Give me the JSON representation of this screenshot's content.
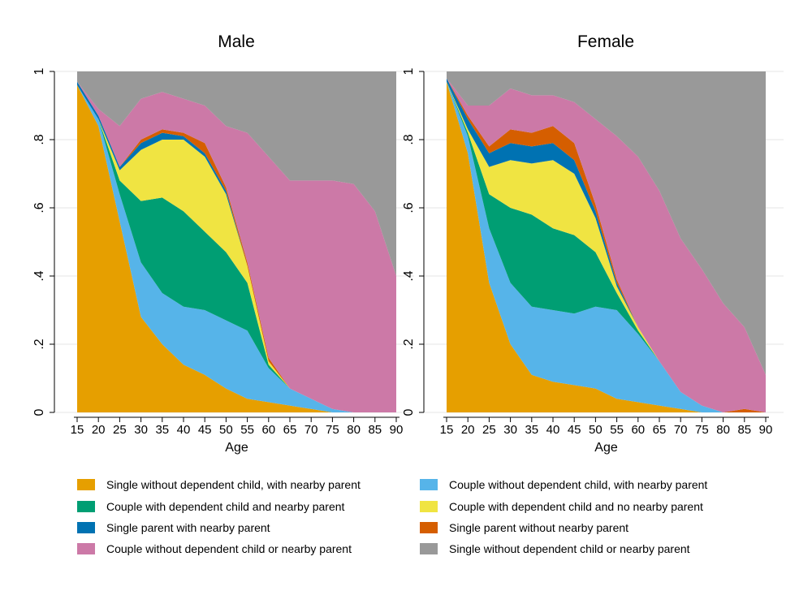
{
  "chart_data": {
    "type": "area",
    "subtype": "stacked-100-percent-histogram",
    "x_ticks": [
      15,
      20,
      25,
      30,
      35,
      40,
      45,
      50,
      55,
      60,
      65,
      70,
      75,
      80,
      85,
      90
    ],
    "y_ticks": [
      0,
      0.2,
      0.4,
      0.6,
      0.8,
      1
    ],
    "y_tick_labels": [
      "0",
      ".2",
      ".4",
      ".6",
      ".8",
      "1"
    ],
    "ylim": [
      0,
      1
    ],
    "xlim": [
      15,
      90
    ],
    "xlabel": "Age",
    "grid": "horizontal",
    "legend_position": "bottom",
    "series": [
      {
        "name": "Single without dependent child, with nearby parent",
        "color": "#E69F00"
      },
      {
        "name": "Couple without dependent child, with nearby parent",
        "color": "#56B4E9"
      },
      {
        "name": "Couple with dependent child and nearby parent",
        "color": "#009E73"
      },
      {
        "name": "Couple with dependent child and no nearby parent",
        "color": "#F0E442"
      },
      {
        "name": "Single parent with nearby parent",
        "color": "#0072B2"
      },
      {
        "name": "Single parent without nearby parent",
        "color": "#D55E00"
      },
      {
        "name": "Couple without dependent child or nearby parent",
        "color": "#CC79A7"
      },
      {
        "name": "Single without dependent child or nearby parent",
        "color": "#999999"
      }
    ],
    "panels": [
      {
        "title": "Male",
        "ages": [
          15,
          20,
          25,
          30,
          35,
          40,
          45,
          50,
          55,
          60,
          65,
          70,
          75,
          80,
          85,
          90
        ],
        "values": [
          [
            0.96,
            0.0,
            0.0,
            0.0,
            0.01,
            0.0,
            0.0,
            0.03
          ],
          [
            0.84,
            0.02,
            0.0,
            0.0,
            0.01,
            0.0,
            0.02,
            0.11
          ],
          [
            0.56,
            0.08,
            0.04,
            0.03,
            0.01,
            0.0,
            0.12,
            0.16
          ],
          [
            0.28,
            0.16,
            0.18,
            0.15,
            0.02,
            0.01,
            0.12,
            0.08
          ],
          [
            0.2,
            0.15,
            0.28,
            0.17,
            0.02,
            0.01,
            0.11,
            0.06
          ],
          [
            0.14,
            0.17,
            0.28,
            0.21,
            0.01,
            0.01,
            0.1,
            0.08
          ],
          [
            0.11,
            0.19,
            0.23,
            0.22,
            0.01,
            0.03,
            0.11,
            0.1
          ],
          [
            0.07,
            0.2,
            0.2,
            0.17,
            0.01,
            0.01,
            0.18,
            0.16
          ],
          [
            0.04,
            0.2,
            0.14,
            0.05,
            0.0,
            0.01,
            0.38,
            0.18
          ],
          [
            0.03,
            0.1,
            0.01,
            0.01,
            0.0,
            0.01,
            0.59,
            0.25
          ],
          [
            0.02,
            0.05,
            0.0,
            0.0,
            0.0,
            0.0,
            0.61,
            0.32
          ],
          [
            0.01,
            0.03,
            0.0,
            0.0,
            0.0,
            0.0,
            0.64,
            0.32
          ],
          [
            0.0,
            0.01,
            0.0,
            0.0,
            0.0,
            0.0,
            0.67,
            0.32
          ],
          [
            0.0,
            0.0,
            0.0,
            0.0,
            0.0,
            0.0,
            0.67,
            0.33
          ],
          [
            0.0,
            0.0,
            0.0,
            0.0,
            0.0,
            0.0,
            0.59,
            0.41
          ],
          [
            0.0,
            0.0,
            0.0,
            0.0,
            0.0,
            0.0,
            0.4,
            0.6
          ]
        ]
      },
      {
        "title": "Female",
        "ages": [
          15,
          20,
          25,
          30,
          35,
          40,
          45,
          50,
          55,
          60,
          65,
          70,
          75,
          80,
          85,
          90
        ],
        "values": [
          [
            0.97,
            0.0,
            0.0,
            0.0,
            0.01,
            0.0,
            0.0,
            0.02
          ],
          [
            0.76,
            0.05,
            0.01,
            0.01,
            0.03,
            0.01,
            0.03,
            0.1
          ],
          [
            0.38,
            0.16,
            0.1,
            0.08,
            0.04,
            0.02,
            0.12,
            0.1
          ],
          [
            0.2,
            0.18,
            0.22,
            0.14,
            0.05,
            0.04,
            0.12,
            0.05
          ],
          [
            0.11,
            0.2,
            0.27,
            0.15,
            0.05,
            0.04,
            0.11,
            0.07
          ],
          [
            0.09,
            0.21,
            0.24,
            0.2,
            0.05,
            0.05,
            0.09,
            0.07
          ],
          [
            0.08,
            0.21,
            0.23,
            0.18,
            0.04,
            0.05,
            0.12,
            0.09
          ],
          [
            0.07,
            0.24,
            0.16,
            0.1,
            0.02,
            0.02,
            0.25,
            0.14
          ],
          [
            0.04,
            0.26,
            0.05,
            0.02,
            0.01,
            0.01,
            0.42,
            0.19
          ],
          [
            0.03,
            0.2,
            0.01,
            0.01,
            0.0,
            0.0,
            0.5,
            0.25
          ],
          [
            0.02,
            0.13,
            0.0,
            0.0,
            0.0,
            0.0,
            0.5,
            0.35
          ],
          [
            0.01,
            0.05,
            0.0,
            0.0,
            0.0,
            0.0,
            0.45,
            0.49
          ],
          [
            0.0,
            0.02,
            0.0,
            0.0,
            0.0,
            0.0,
            0.4,
            0.58
          ],
          [
            0.0,
            0.0,
            0.0,
            0.0,
            0.0,
            0.0,
            0.32,
            0.68
          ],
          [
            0.0,
            0.0,
            0.0,
            0.0,
            0.0,
            0.01,
            0.24,
            0.75
          ],
          [
            0.0,
            0.0,
            0.0,
            0.0,
            0.0,
            0.0,
            0.11,
            0.89
          ]
        ]
      }
    ]
  }
}
